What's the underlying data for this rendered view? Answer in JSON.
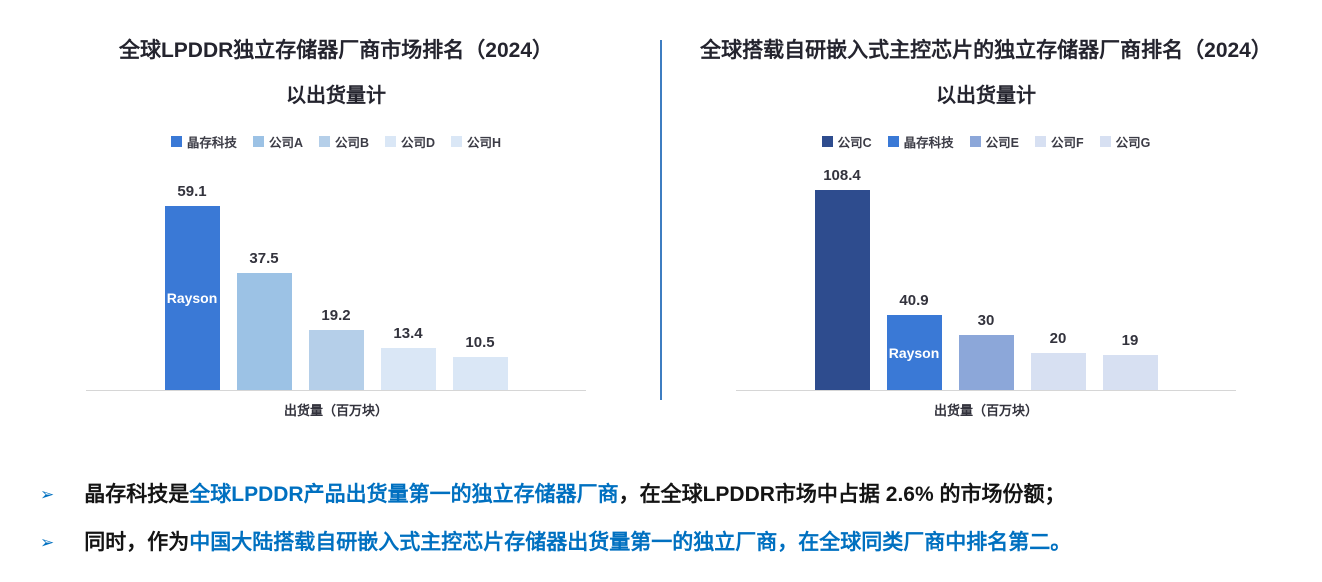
{
  "colors": {
    "highlight": "#0070c0",
    "divider": "#3e7dc1",
    "axis_line": "#d6d6d6",
    "rayson_blue": "#3a79d6",
    "dark_navy": "#2e4c8e",
    "title_text": "#24242e",
    "body_text": "#141414"
  },
  "chart_data": [
    {
      "type": "bar",
      "title": "全球LPDDR独立存储器厂商市场排名（2024）",
      "subtitle": "以出货量计",
      "xlabel": "出货量（百万块）",
      "ylabel": "",
      "legend": [
        "晶存科技",
        "公司A",
        "公司B",
        "公司D",
        "公司H"
      ],
      "categories": [
        "晶存科技",
        "公司A",
        "公司B",
        "公司D",
        "公司H"
      ],
      "values": [
        59.1,
        37.5,
        19.2,
        13.4,
        10.5
      ],
      "value_labels": [
        "59.1",
        "37.5",
        "19.2",
        "13.4",
        "10.5"
      ],
      "bar_colors": [
        "#3a79d6",
        "#9cc2e5",
        "#b5cfe9",
        "#dae7f6",
        "#dae7f6"
      ],
      "bar_inner_labels": [
        "Rayson",
        "",
        "",
        "",
        ""
      ],
      "ylim": [
        0,
        65
      ],
      "grid": false,
      "legend_position": "top"
    },
    {
      "type": "bar",
      "title": "全球搭载自研嵌入式主控芯片的独立存储器厂商排名（2024）",
      "subtitle": "以出货量计",
      "xlabel": "出货量（百万块）",
      "ylabel": "",
      "legend": [
        "公司C",
        "晶存科技",
        "公司E",
        "公司F",
        "公司G"
      ],
      "categories": [
        "公司C",
        "晶存科技",
        "公司E",
        "公司F",
        "公司G"
      ],
      "values": [
        108.4,
        40.9,
        30,
        20,
        19
      ],
      "value_labels": [
        "108.4",
        "40.9",
        "30",
        "20",
        "19"
      ],
      "bar_colors": [
        "#2e4c8e",
        "#3a79d6",
        "#8ca7d9",
        "#d7e0f2",
        "#d7e0f2"
      ],
      "bar_inner_labels": [
        "",
        "Rayson",
        "",
        "",
        ""
      ],
      "ylim": [
        0,
        115
      ],
      "grid": false,
      "legend_position": "top"
    }
  ],
  "bullets": [
    {
      "marker": "➢",
      "segments": [
        {
          "text": "晶存科技是",
          "highlight": false
        },
        {
          "text": "全球LPDDR产品出货量第一的独立存储器厂商",
          "highlight": true
        },
        {
          "text": "，在全球LPDDR市场中占据 2.6% 的市场份额；",
          "highlight": false
        }
      ]
    },
    {
      "marker": "➢",
      "segments": [
        {
          "text": "同时，作为",
          "highlight": false
        },
        {
          "text": "中国大陆搭载自研嵌入式主控芯片存储器出货量第一的独立厂商，在全球同类厂商中排名第二。",
          "highlight": true
        }
      ]
    }
  ]
}
